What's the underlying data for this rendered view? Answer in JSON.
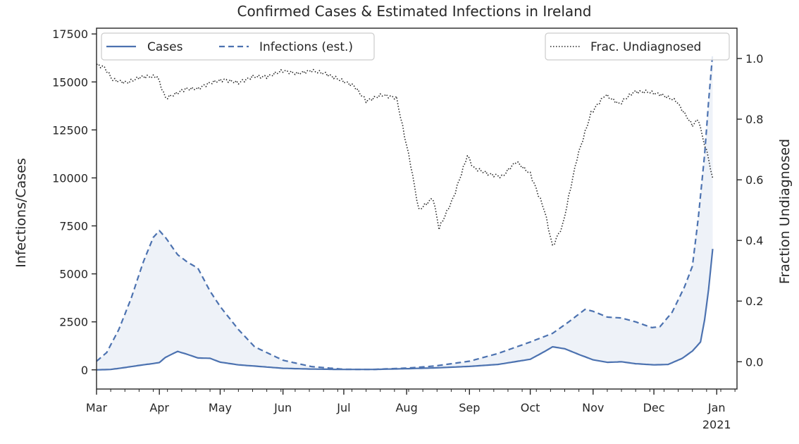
{
  "chart_data": {
    "type": "line",
    "title": "Confirmed Cases & Estimated Infections in Ireland",
    "ylabel": "Infections/Cases",
    "y2label": "Fraction Undiagnosed",
    "xlabel": "",
    "x_ticks": [
      {
        "date": "2020-03-01",
        "label": "Mar"
      },
      {
        "date": "2020-04-01",
        "label": "Apr"
      },
      {
        "date": "2020-05-01",
        "label": "May"
      },
      {
        "date": "2020-06-01",
        "label": "Jun"
      },
      {
        "date": "2020-07-01",
        "label": "Jul"
      },
      {
        "date": "2020-08-01",
        "label": "Aug"
      },
      {
        "date": "2020-09-01",
        "label": "Sep"
      },
      {
        "date": "2020-10-01",
        "label": "Oct"
      },
      {
        "date": "2020-11-01",
        "label": "Nov"
      },
      {
        "date": "2020-12-01",
        "label": "Dec"
      },
      {
        "date": "2021-01-01",
        "label": "Jan",
        "sublabel": "2021"
      }
    ],
    "xlim": [
      "2020-03-01",
      "2021-01-11"
    ],
    "ylim": [
      -1000,
      17800
    ],
    "y_ticks": [
      0,
      2500,
      5000,
      7500,
      10000,
      12500,
      15000,
      17500
    ],
    "y2lim": [
      -0.09,
      1.1
    ],
    "y2_ticks": [
      0.0,
      0.2,
      0.4,
      0.6,
      0.8,
      1.0
    ],
    "y2_tick_labels": [
      "0.0",
      "0.2",
      "0.4",
      "0.6",
      "0.8",
      "1.0"
    ],
    "grid": false,
    "fill_between": {
      "upper": "Infections (est.)",
      "lower": "Cases",
      "color": "#eef2f8"
    },
    "legends": [
      {
        "placement": "top-left",
        "entries": [
          "Cases",
          "Infections (est.)"
        ]
      },
      {
        "placement": "top-right",
        "entries": [
          "Frac. Undiagnosed"
        ]
      }
    ],
    "series": [
      {
        "name": "Cases",
        "axis": "left",
        "style": "solid",
        "color": "#4c72b0",
        "points": [
          [
            "2020-03-01",
            0
          ],
          [
            "2020-03-08",
            20
          ],
          [
            "2020-03-15",
            120
          ],
          [
            "2020-03-22",
            230
          ],
          [
            "2020-03-29",
            330
          ],
          [
            "2020-04-01",
            380
          ],
          [
            "2020-04-04",
            650
          ],
          [
            "2020-04-10",
            960
          ],
          [
            "2020-04-15",
            800
          ],
          [
            "2020-04-20",
            620
          ],
          [
            "2020-04-26",
            600
          ],
          [
            "2020-05-01",
            400
          ],
          [
            "2020-05-10",
            260
          ],
          [
            "2020-05-20",
            180
          ],
          [
            "2020-06-01",
            80
          ],
          [
            "2020-06-15",
            40
          ],
          [
            "2020-07-01",
            20
          ],
          [
            "2020-07-15",
            20
          ],
          [
            "2020-08-01",
            60
          ],
          [
            "2020-08-15",
            100
          ],
          [
            "2020-09-01",
            180
          ],
          [
            "2020-09-15",
            280
          ],
          [
            "2020-10-01",
            550
          ],
          [
            "2020-10-08",
            950
          ],
          [
            "2020-10-12",
            1200
          ],
          [
            "2020-10-18",
            1100
          ],
          [
            "2020-10-25",
            800
          ],
          [
            "2020-11-01",
            520
          ],
          [
            "2020-11-08",
            390
          ],
          [
            "2020-11-15",
            420
          ],
          [
            "2020-11-22",
            320
          ],
          [
            "2020-12-01",
            260
          ],
          [
            "2020-12-08",
            280
          ],
          [
            "2020-12-15",
            600
          ],
          [
            "2020-12-20",
            980
          ],
          [
            "2020-12-24",
            1450
          ],
          [
            "2020-12-26",
            2600
          ],
          [
            "2020-12-28",
            4200
          ],
          [
            "2020-12-30",
            6300
          ]
        ]
      },
      {
        "name": "Infections (est.)",
        "axis": "left",
        "style": "dashed",
        "color": "#4c72b0",
        "points": [
          [
            "2020-03-01",
            450
          ],
          [
            "2020-03-06",
            900
          ],
          [
            "2020-03-12",
            2100
          ],
          [
            "2020-03-18",
            3700
          ],
          [
            "2020-03-24",
            5600
          ],
          [
            "2020-03-29",
            6900
          ],
          [
            "2020-04-01",
            7250
          ],
          [
            "2020-04-04",
            6900
          ],
          [
            "2020-04-10",
            6000
          ],
          [
            "2020-04-15",
            5600
          ],
          [
            "2020-04-20",
            5300
          ],
          [
            "2020-04-26",
            4100
          ],
          [
            "2020-05-01",
            3300
          ],
          [
            "2020-05-10",
            2100
          ],
          [
            "2020-05-18",
            1200
          ],
          [
            "2020-06-01",
            500
          ],
          [
            "2020-06-15",
            170
          ],
          [
            "2020-07-01",
            30
          ],
          [
            "2020-07-15",
            20
          ],
          [
            "2020-08-01",
            90
          ],
          [
            "2020-08-15",
            200
          ],
          [
            "2020-09-01",
            450
          ],
          [
            "2020-09-15",
            850
          ],
          [
            "2020-10-01",
            1450
          ],
          [
            "2020-10-12",
            1900
          ],
          [
            "2020-10-20",
            2500
          ],
          [
            "2020-10-28",
            3150
          ],
          [
            "2020-11-01",
            3050
          ],
          [
            "2020-11-08",
            2750
          ],
          [
            "2020-11-15",
            2700
          ],
          [
            "2020-11-22",
            2500
          ],
          [
            "2020-11-30",
            2200
          ],
          [
            "2020-12-04",
            2250
          ],
          [
            "2020-12-10",
            3000
          ],
          [
            "2020-12-16",
            4300
          ],
          [
            "2020-12-20",
            5400
          ],
          [
            "2020-12-23",
            8000
          ],
          [
            "2020-12-26",
            11200
          ],
          [
            "2020-12-28",
            14000
          ],
          [
            "2020-12-30",
            16500
          ]
        ]
      },
      {
        "name": "Frac. Undiagnosed",
        "axis": "right",
        "style": "dotted",
        "color": "#262626",
        "points": [
          [
            "2020-03-01",
            0.98
          ],
          [
            "2020-03-05",
            0.97
          ],
          [
            "2020-03-09",
            0.93
          ],
          [
            "2020-03-16",
            0.92
          ],
          [
            "2020-03-23",
            0.94
          ],
          [
            "2020-03-31",
            0.94
          ],
          [
            "2020-04-04",
            0.87
          ],
          [
            "2020-04-08",
            0.88
          ],
          [
            "2020-04-14",
            0.9
          ],
          [
            "2020-04-20",
            0.9
          ],
          [
            "2020-04-26",
            0.92
          ],
          [
            "2020-05-03",
            0.93
          ],
          [
            "2020-05-10",
            0.92
          ],
          [
            "2020-05-17",
            0.94
          ],
          [
            "2020-05-24",
            0.94
          ],
          [
            "2020-06-01",
            0.96
          ],
          [
            "2020-06-08",
            0.95
          ],
          [
            "2020-06-15",
            0.96
          ],
          [
            "2020-06-22",
            0.95
          ],
          [
            "2020-06-29",
            0.93
          ],
          [
            "2020-07-06",
            0.91
          ],
          [
            "2020-07-12",
            0.86
          ],
          [
            "2020-07-20",
            0.88
          ],
          [
            "2020-07-27",
            0.87
          ],
          [
            "2020-08-03",
            0.65
          ],
          [
            "2020-08-07",
            0.5
          ],
          [
            "2020-08-14",
            0.54
          ],
          [
            "2020-08-17",
            0.44
          ],
          [
            "2020-08-24",
            0.54
          ],
          [
            "2020-08-31",
            0.68
          ],
          [
            "2020-09-03",
            0.64
          ],
          [
            "2020-09-10",
            0.62
          ],
          [
            "2020-09-17",
            0.61
          ],
          [
            "2020-09-24",
            0.66
          ],
          [
            "2020-10-01",
            0.62
          ],
          [
            "2020-10-08",
            0.5
          ],
          [
            "2020-10-12",
            0.38
          ],
          [
            "2020-10-17",
            0.45
          ],
          [
            "2020-10-24",
            0.67
          ],
          [
            "2020-10-31",
            0.82
          ],
          [
            "2020-11-07",
            0.88
          ],
          [
            "2020-11-14",
            0.85
          ],
          [
            "2020-11-21",
            0.89
          ],
          [
            "2020-11-28",
            0.89
          ],
          [
            "2020-12-05",
            0.88
          ],
          [
            "2020-12-12",
            0.86
          ],
          [
            "2020-12-17",
            0.81
          ],
          [
            "2020-12-20",
            0.78
          ],
          [
            "2020-12-23",
            0.8
          ],
          [
            "2020-12-25",
            0.74
          ],
          [
            "2020-12-28",
            0.67
          ],
          [
            "2020-12-30",
            0.6
          ]
        ]
      }
    ]
  }
}
